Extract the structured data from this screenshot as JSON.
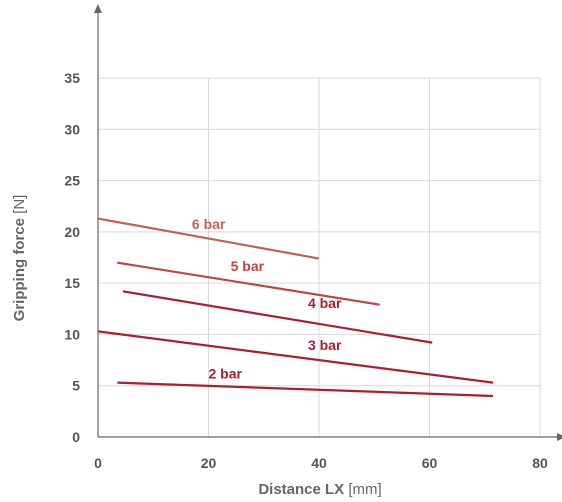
{
  "chart_data": {
    "type": "line",
    "xlabel": "Distance LX",
    "xunit": "[mm]",
    "ylabel": "Gripping force",
    "yunit": "[N]",
    "xlim": [
      0,
      80
    ],
    "ylim": [
      0,
      35
    ],
    "xticks": [
      "0",
      "20",
      "40",
      "60",
      "80"
    ],
    "yticks": [
      "0",
      "5",
      "10",
      "15",
      "20",
      "25",
      "30",
      "35"
    ],
    "grid": true,
    "series": [
      {
        "name": "6 bar",
        "color": "#c0605a",
        "x": [
          0,
          40
        ],
        "y": [
          21.3,
          17.4
        ],
        "label_at": [
          17,
          20.3
        ]
      },
      {
        "name": "5 bar",
        "color": "#b84848",
        "x": [
          3.5,
          51
        ],
        "y": [
          17.0,
          12.9
        ],
        "label_at": [
          24,
          16.2
        ]
      },
      {
        "name": "4 bar",
        "color": "#a82030",
        "x": [
          4.5,
          60.5
        ],
        "y": [
          14.2,
          9.2
        ],
        "label_at": [
          38,
          12.6
        ]
      },
      {
        "name": "3 bar",
        "color": "#a82030",
        "x": [
          0,
          71.5
        ],
        "y": [
          10.3,
          5.3
        ],
        "label_at": [
          38,
          8.5
        ]
      },
      {
        "name": "2 bar",
        "color": "#a82030",
        "x": [
          3.5,
          71.5
        ],
        "y": [
          5.3,
          4.0
        ],
        "label_at": [
          20,
          5.7
        ]
      }
    ]
  }
}
